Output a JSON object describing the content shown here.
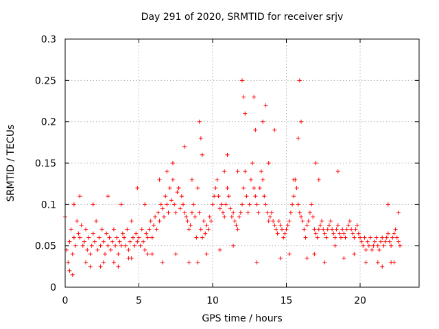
{
  "chart_data": {
    "type": "scatter",
    "title": "Day 291 of 2020, SRMTID for receiver srjv",
    "xlabel": "GPS time / hours",
    "ylabel": "SRMTID / TECUs",
    "xlim": [
      0,
      24
    ],
    "ylim": [
      0,
      0.3
    ],
    "xticks": [
      0,
      5,
      10,
      15,
      20
    ],
    "yticks": [
      0,
      0.05,
      0.1,
      0.15,
      0.2,
      0.25,
      0.3
    ],
    "xtick_labels": [
      "0",
      "5",
      "10",
      "15",
      "20"
    ],
    "ytick_labels": [
      "0",
      "0.05",
      "0.1",
      "0.15",
      "0.2",
      "0.25",
      "0.3"
    ],
    "grid": true,
    "marker": "+",
    "marker_color": "#ff0000",
    "series": [
      {
        "x": [
          0.0,
          0.1,
          0.2,
          0.3,
          0.4,
          0.5,
          0.6,
          0.7,
          0.8,
          0.9,
          1.0,
          1.1,
          1.2,
          1.3,
          1.4,
          1.5,
          1.6,
          1.7,
          1.8,
          1.9,
          2.0,
          2.1,
          2.2,
          2.3,
          2.4,
          2.5,
          2.6,
          2.7,
          2.8,
          2.9,
          3.0,
          3.1,
          3.2,
          3.3,
          3.4,
          3.5,
          3.6,
          3.7,
          3.8,
          3.9,
          4.0,
          4.1,
          4.2,
          4.3,
          4.4,
          4.5,
          4.6,
          4.7,
          4.8,
          4.9,
          5.0,
          5.1,
          5.2,
          5.3,
          5.4,
          5.5,
          5.6,
          5.7,
          5.8,
          5.9,
          6.0,
          6.1,
          6.2,
          6.3,
          6.4,
          6.5,
          6.6,
          6.7,
          6.8,
          6.9,
          7.0,
          7.1,
          7.2,
          7.3,
          7.4,
          7.5,
          7.6,
          7.7,
          7.8,
          7.9,
          8.0,
          8.1,
          8.2,
          8.3,
          8.4,
          8.5,
          8.6,
          8.7,
          8.8,
          8.9,
          9.0,
          9.1,
          9.2,
          9.3,
          9.4,
          9.5,
          9.6,
          9.7,
          9.8,
          9.9,
          10.0,
          10.1,
          10.2,
          10.3,
          10.4,
          10.5,
          10.6,
          10.7,
          10.8,
          10.9,
          11.0,
          11.1,
          11.2,
          11.3,
          11.4,
          11.5,
          11.6,
          11.7,
          11.8,
          11.9,
          12.0,
          12.1,
          12.2,
          12.3,
          12.4,
          12.5,
          12.6,
          12.7,
          12.8,
          12.9,
          13.0,
          13.1,
          13.2,
          13.3,
          13.4,
          13.5,
          13.6,
          13.7,
          13.8,
          13.9,
          14.0,
          14.1,
          14.2,
          14.3,
          14.4,
          14.5,
          14.6,
          14.7,
          14.8,
          14.9,
          15.0,
          15.1,
          15.2,
          15.3,
          15.4,
          15.5,
          15.6,
          15.7,
          15.8,
          15.9,
          16.0,
          16.1,
          16.2,
          16.3,
          16.4,
          16.5,
          16.6,
          16.7,
          16.8,
          16.9,
          17.0,
          17.1,
          17.2,
          17.3,
          17.4,
          17.5,
          17.6,
          17.7,
          17.8,
          17.9,
          18.0,
          18.1,
          18.2,
          18.3,
          18.4,
          18.5,
          18.6,
          18.7,
          18.8,
          18.9,
          19.0,
          19.1,
          19.2,
          19.3,
          19.4,
          19.5,
          19.6,
          19.7,
          19.8,
          19.9,
          20.0,
          20.1,
          20.2,
          20.3,
          20.4,
          20.5,
          20.6,
          20.7,
          20.8,
          20.9,
          21.0,
          21.1,
          21.2,
          21.3,
          21.4,
          21.5,
          21.6,
          21.7,
          21.8,
          21.9,
          22.0,
          22.1,
          22.2,
          22.3,
          22.4,
          22.5,
          22.6,
          22.7,
          0.3,
          0.6,
          1.0,
          1.4,
          1.9,
          2.4,
          2.9,
          3.3,
          3.8,
          4.3,
          4.9,
          5.4,
          5.9,
          6.4,
          6.9,
          7.3,
          7.7,
          8.1,
          8.6,
          9.0,
          9.1,
          9.2,
          9.3,
          10.8,
          11.0,
          11.7,
          12.0,
          12.1,
          12.2,
          12.8,
          12.9,
          13.4,
          13.6,
          13.8,
          14.2,
          15.5,
          15.8,
          15.9,
          16.0,
          16.9,
          17.0,
          17.2,
          18.3,
          18.5,
          21.2,
          21.9,
          22.3,
          22.6,
          0.5,
          1.7,
          2.6,
          3.6,
          4.5,
          5.6,
          6.6,
          7.5,
          8.4,
          9.6,
          10.5,
          11.4,
          13.0,
          14.6,
          15.2,
          16.4,
          17.6,
          18.9,
          19.6,
          20.4,
          21.5,
          22.1
        ],
        "y": [
          0.085,
          0.045,
          0.03,
          0.055,
          0.07,
          0.04,
          0.06,
          0.05,
          0.08,
          0.065,
          0.06,
          0.075,
          0.05,
          0.055,
          0.07,
          0.045,
          0.06,
          0.04,
          0.05,
          0.065,
          0.055,
          0.08,
          0.045,
          0.06,
          0.05,
          0.07,
          0.055,
          0.04,
          0.065,
          0.05,
          0.06,
          0.045,
          0.055,
          0.07,
          0.05,
          0.06,
          0.04,
          0.055,
          0.05,
          0.065,
          0.06,
          0.05,
          0.07,
          0.045,
          0.055,
          0.08,
          0.06,
          0.05,
          0.065,
          0.055,
          0.06,
          0.05,
          0.07,
          0.055,
          0.045,
          0.065,
          0.06,
          0.07,
          0.08,
          0.06,
          0.075,
          0.085,
          0.07,
          0.09,
          0.08,
          0.1,
          0.095,
          0.085,
          0.11,
          0.1,
          0.09,
          0.12,
          0.105,
          0.13,
          0.1,
          0.09,
          0.115,
          0.12,
          0.095,
          0.11,
          0.1,
          0.09,
          0.085,
          0.08,
          0.07,
          0.075,
          0.09,
          0.1,
          0.085,
          0.06,
          0.12,
          0.09,
          0.07,
          0.06,
          0.08,
          0.065,
          0.075,
          0.07,
          0.085,
          0.08,
          0.1,
          0.11,
          0.12,
          0.13,
          0.11,
          0.095,
          0.1,
          0.09,
          0.085,
          0.1,
          0.12,
          0.11,
          0.095,
          0.085,
          0.09,
          0.08,
          0.075,
          0.07,
          0.085,
          0.09,
          0.1,
          0.12,
          0.14,
          0.11,
          0.09,
          0.1,
          0.13,
          0.15,
          0.12,
          0.11,
          0.1,
          0.09,
          0.12,
          0.14,
          0.13,
          0.11,
          0.1,
          0.09,
          0.08,
          0.085,
          0.09,
          0.08,
          0.075,
          0.07,
          0.065,
          0.08,
          0.075,
          0.07,
          0.06,
          0.065,
          0.07,
          0.075,
          0.08,
          0.09,
          0.1,
          0.11,
          0.13,
          0.12,
          0.1,
          0.09,
          0.085,
          0.08,
          0.07,
          0.06,
          0.075,
          0.08,
          0.09,
          0.1,
          0.085,
          0.07,
          0.065,
          0.06,
          0.07,
          0.075,
          0.08,
          0.07,
          0.065,
          0.06,
          0.07,
          0.075,
          0.08,
          0.07,
          0.065,
          0.06,
          0.07,
          0.075,
          0.065,
          0.06,
          0.07,
          0.065,
          0.06,
          0.07,
          0.075,
          0.08,
          0.07,
          0.065,
          0.06,
          0.07,
          0.075,
          0.065,
          0.06,
          0.055,
          0.05,
          0.06,
          0.045,
          0.055,
          0.05,
          0.06,
          0.045,
          0.05,
          0.055,
          0.06,
          0.05,
          0.045,
          0.055,
          0.06,
          0.05,
          0.055,
          0.06,
          0.065,
          0.055,
          0.05,
          0.06,
          0.065,
          0.07,
          0.06,
          0.055,
          0.05,
          0.02,
          0.1,
          0.11,
          0.03,
          0.1,
          0.025,
          0.11,
          0.03,
          0.1,
          0.035,
          0.12,
          0.1,
          0.04,
          0.13,
          0.14,
          0.15,
          0.12,
          0.17,
          0.13,
          0.03,
          0.2,
          0.18,
          0.16,
          0.14,
          0.16,
          0.14,
          0.25,
          0.23,
          0.21,
          0.23,
          0.19,
          0.2,
          0.22,
          0.15,
          0.19,
          0.13,
          0.18,
          0.25,
          0.2,
          0.04,
          0.15,
          0.13,
          0.05,
          0.14,
          0.03,
          0.1,
          0.03,
          0.09,
          0.015,
          0.025,
          0.03,
          0.025,
          0.035,
          0.04,
          0.03,
          0.04,
          0.03,
          0.04,
          0.045,
          0.05,
          0.03,
          0.035,
          0.04,
          0.035,
          0.03,
          0.035,
          0.04,
          0.03,
          0.025,
          0.03
        ]
      }
    ]
  }
}
